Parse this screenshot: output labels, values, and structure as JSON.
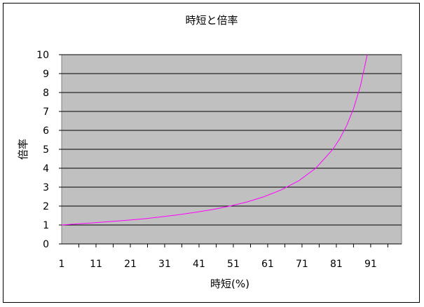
{
  "chart_data": {
    "type": "line",
    "title": "時短と倍率",
    "xlabel": "時短(%)",
    "ylabel": "倍率",
    "xlim": [
      1,
      100
    ],
    "ylim": [
      0,
      10
    ],
    "grid": "horizontal",
    "legend": "none",
    "x_tick_labels": [
      "1",
      "11",
      "21",
      "31",
      "41",
      "51",
      "61",
      "71",
      "81",
      "91"
    ],
    "y_tick_labels": [
      "0",
      "1",
      "2",
      "3",
      "4",
      "5",
      "6",
      "7",
      "8",
      "9",
      "10"
    ],
    "series": [
      {
        "color": "#ff00ff",
        "x": [
          1,
          5,
          10,
          15,
          20,
          25,
          30,
          35,
          40,
          45,
          50,
          55,
          60,
          65,
          70,
          75,
          80,
          82,
          84,
          86,
          88,
          90
        ],
        "y": [
          1.0,
          1.05,
          1.11,
          1.18,
          1.25,
          1.33,
          1.43,
          1.54,
          1.67,
          1.82,
          2.0,
          2.22,
          2.5,
          2.86,
          3.33,
          4.0,
          5.0,
          5.56,
          6.25,
          7.14,
          8.33,
          10.0
        ]
      }
    ]
  },
  "colors": {
    "plot_background": "#c0c0c0",
    "gridline": "#000000",
    "line": "#ff00ff"
  }
}
